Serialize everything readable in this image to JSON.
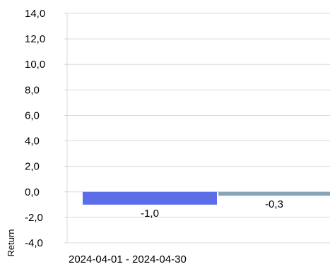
{
  "chart_data": {
    "type": "bar",
    "categories": [
      "2024-04-01 - 2024-04-30"
    ],
    "series": [
      {
        "values": [
          -1.0
        ],
        "color": "#5b6ee8"
      },
      {
        "values": [
          -0.3
        ],
        "color": "#86a5b5"
      }
    ],
    "data_labels": [
      "-1,0",
      "-0,3"
    ],
    "xlabel": "",
    "ylabel": "Return",
    "ylim": [
      -4.0,
      14.0
    ],
    "yticks": [
      -4.0,
      -2.0,
      0.0,
      2.0,
      4.0,
      6.0,
      8.0,
      10.0,
      12.0,
      14.0
    ],
    "ytick_labels": [
      "-4,0",
      "-2,0",
      "0,0",
      "2,0",
      "4,0",
      "6,0",
      "8,0",
      "10,0",
      "12,0",
      "14,0"
    ],
    "grid": true,
    "legend": "none"
  }
}
